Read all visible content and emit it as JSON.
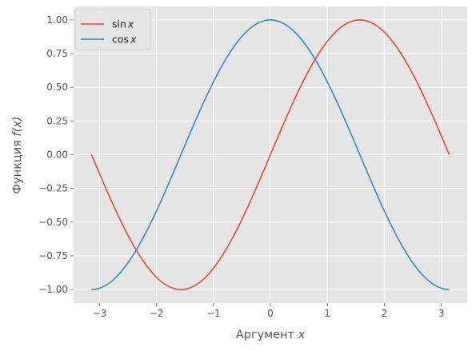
{
  "chart_data": {
    "type": "line",
    "xlabel": {
      "text": "Аргумент ",
      "var": "x"
    },
    "ylabel": {
      "text": "Функция ",
      "var": "f(x)"
    },
    "xlim": [
      -3.456,
      3.456
    ],
    "ylim": [
      -1.1,
      1.1
    ],
    "x_range": [
      -3.14159,
      3.14159
    ],
    "xticks": [
      -3,
      -2,
      -1,
      0,
      1,
      2,
      3
    ],
    "xtick_labels": [
      "−3",
      "−2",
      "−1",
      "0",
      "1",
      "2",
      "3"
    ],
    "yticks": [
      -1.0,
      -0.75,
      -0.5,
      -0.25,
      0.0,
      0.25,
      0.5,
      0.75,
      1.0
    ],
    "ytick_labels": [
      "−1.00",
      "−0.75",
      "−0.50",
      "−0.25",
      "0.00",
      "0.25",
      "0.50",
      "0.75",
      "1.00"
    ],
    "grid": true,
    "style": "ggplot",
    "legend_position": "upper-left",
    "series": [
      {
        "name": {
          "fn": "sin",
          "var": "x"
        },
        "function": "sin",
        "color": "#E24A33"
      },
      {
        "name": {
          "fn": "cos",
          "var": "x"
        },
        "function": "cos",
        "color": "#348ABD"
      }
    ]
  }
}
